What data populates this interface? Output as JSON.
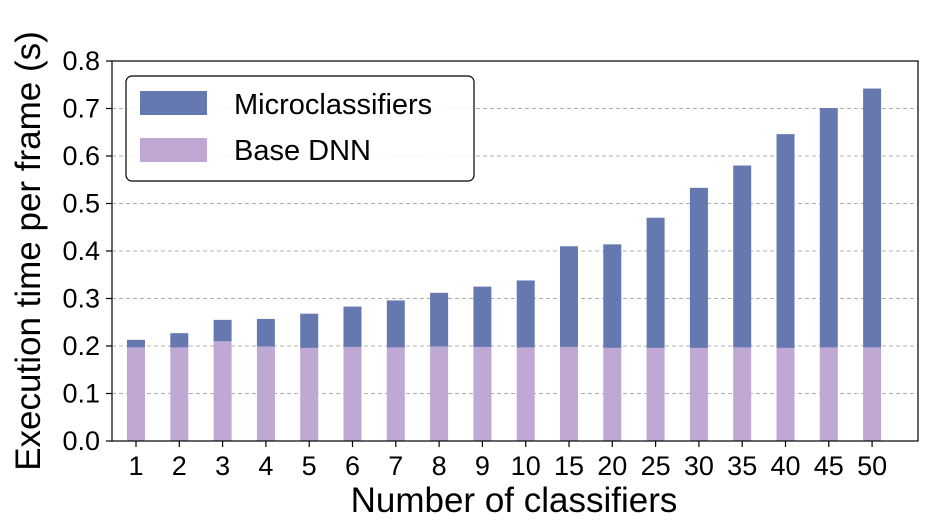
{
  "chart_data": {
    "type": "bar",
    "stacked": true,
    "title": "",
    "xlabel": "Number of classifiers",
    "ylabel": "Execution time per frame (s)",
    "ylim": [
      0,
      0.8
    ],
    "yticks": [
      "0.0",
      "0.1",
      "0.2",
      "0.3",
      "0.4",
      "0.5",
      "0.6",
      "0.7",
      "0.8"
    ],
    "categories": [
      "1",
      "2",
      "3",
      "4",
      "5",
      "6",
      "7",
      "8",
      "9",
      "10",
      "15",
      "20",
      "25",
      "30",
      "35",
      "40",
      "45",
      "50"
    ],
    "series": [
      {
        "name": "Base DNN",
        "color": "#c0a8d4",
        "values": [
          0.197,
          0.197,
          0.21,
          0.199,
          0.196,
          0.198,
          0.197,
          0.199,
          0.198,
          0.197,
          0.198,
          0.196,
          0.196,
          0.196,
          0.197,
          0.196,
          0.197,
          0.197
        ]
      },
      {
        "name": "Microclassifiers",
        "color": "#6579b0",
        "values": [
          0.016,
          0.03,
          0.045,
          0.058,
          0.072,
          0.085,
          0.099,
          0.113,
          0.127,
          0.141,
          0.212,
          0.218,
          0.274,
          0.337,
          0.383,
          0.45,
          0.504,
          0.545
        ]
      }
    ],
    "grid": "horizontal dashed",
    "legend": {
      "position": "top-left",
      "entries": [
        "Microclassifiers",
        "Base DNN"
      ]
    }
  }
}
